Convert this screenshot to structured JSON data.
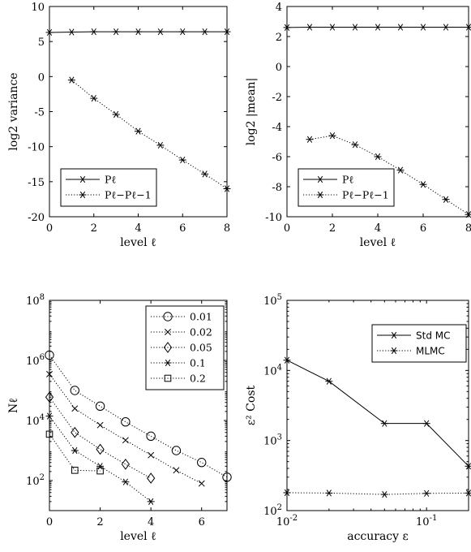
{
  "chart_data": [
    {
      "type": "line",
      "ylabel": "log2 variance",
      "xlabel": "level ℓ",
      "xlim": [
        0,
        8
      ],
      "ylim": [
        -20,
        10
      ],
      "xticks": [
        "0",
        "2",
        "4",
        "6",
        "8"
      ],
      "yticks": [
        "-20",
        "-15",
        "-10",
        "-5",
        "0",
        "5",
        "10"
      ],
      "legend_position": "bottom-left",
      "series": [
        {
          "name": "Pℓ",
          "line": "solid",
          "marker": "asterisk",
          "x": [
            0,
            1,
            2,
            3,
            4,
            5,
            6,
            7,
            8
          ],
          "y": [
            6.3,
            6.35,
            6.4,
            6.4,
            6.4,
            6.4,
            6.4,
            6.4,
            6.4
          ]
        },
        {
          "name": "Pℓ−Pℓ−1",
          "line": "dotted",
          "marker": "asterisk",
          "x": [
            1,
            2,
            3,
            4,
            5,
            6,
            7,
            8
          ],
          "y": [
            -0.5,
            -3.1,
            -5.4,
            -7.8,
            -9.8,
            -11.9,
            -13.9,
            -16.0
          ]
        }
      ]
    },
    {
      "type": "line",
      "ylabel": "log2 |mean|",
      "xlabel": "level ℓ",
      "xlim": [
        0,
        8
      ],
      "ylim": [
        -10,
        4
      ],
      "xticks": [
        "0",
        "2",
        "4",
        "6",
        "8"
      ],
      "yticks": [
        "-10",
        "-8",
        "-6",
        "-4",
        "-2",
        "0",
        "2",
        "4"
      ],
      "legend_position": "bottom-left",
      "series": [
        {
          "name": "Pℓ",
          "line": "solid",
          "marker": "asterisk",
          "x": [
            0,
            1,
            2,
            3,
            4,
            5,
            6,
            7,
            8
          ],
          "y": [
            2.6,
            2.62,
            2.62,
            2.62,
            2.62,
            2.62,
            2.62,
            2.62,
            2.62
          ]
        },
        {
          "name": "Pℓ−Pℓ−1",
          "line": "dotted",
          "marker": "asterisk",
          "x": [
            1,
            2,
            3,
            4,
            5,
            6,
            7,
            8
          ],
          "y": [
            -4.85,
            -4.6,
            -5.2,
            -6.0,
            -6.9,
            -7.85,
            -8.85,
            -9.85
          ]
        }
      ]
    },
    {
      "type": "line",
      "ylabel": "Nℓ",
      "xlabel": "level ℓ",
      "xlim": [
        0,
        7
      ],
      "ylim": [
        10,
        100000000
      ],
      "yscale": "log",
      "xticks": [
        "0",
        "2",
        "4",
        "6"
      ],
      "yticks": [
        "10^2",
        "10^4",
        "10^6",
        "10^8"
      ],
      "legend_position": "top-right",
      "series": [
        {
          "name": "0.01",
          "line": "dotted",
          "marker": "circle",
          "x": [
            0,
            1,
            2,
            3,
            4,
            5,
            6,
            7
          ],
          "y": [
            1500000,
            100000,
            30000,
            9000,
            3000,
            1000,
            400,
            130
          ]
        },
        {
          "name": "0.02",
          "line": "dotted",
          "marker": "x",
          "x": [
            0,
            1,
            2,
            3,
            4,
            5,
            6
          ],
          "y": [
            350000,
            25000,
            7000,
            2200,
            700,
            220,
            80
          ]
        },
        {
          "name": "0.05",
          "line": "dotted",
          "marker": "diamond",
          "x": [
            0,
            1,
            2,
            3,
            4
          ],
          "y": [
            60000,
            4000,
            1100,
            350,
            120
          ]
        },
        {
          "name": "0.1",
          "line": "dotted",
          "marker": "asterisk",
          "x": [
            0,
            1,
            2,
            3,
            4
          ],
          "y": [
            14000,
            1000,
            300,
            90,
            20
          ]
        },
        {
          "name": "0.2",
          "line": "dotted",
          "marker": "square",
          "x": [
            0,
            1,
            2
          ],
          "y": [
            3500,
            220,
            210
          ]
        }
      ]
    },
    {
      "type": "line",
      "ylabel": "ε² Cost",
      "xlabel": "accuracy ε",
      "xlim": [
        0.01,
        0.2
      ],
      "ylim": [
        100,
        100000
      ],
      "xscale": "log",
      "yscale": "log",
      "xticks": [
        "10^-2",
        "10^-1"
      ],
      "yticks": [
        "10^2",
        "10^3",
        "10^4",
        "10^5"
      ],
      "legend_position": "top-right",
      "series": [
        {
          "name": "Std MC",
          "line": "solid",
          "marker": "asterisk",
          "x": [
            0.01,
            0.02,
            0.05,
            0.1,
            0.2
          ],
          "y": [
            14000,
            7000,
            1750,
            1750,
            430
          ]
        },
        {
          "name": "MLMC",
          "line": "dotted",
          "marker": "asterisk",
          "x": [
            0.01,
            0.02,
            0.05,
            0.1,
            0.2
          ],
          "y": [
            180,
            178,
            170,
            176,
            178
          ]
        }
      ]
    }
  ]
}
